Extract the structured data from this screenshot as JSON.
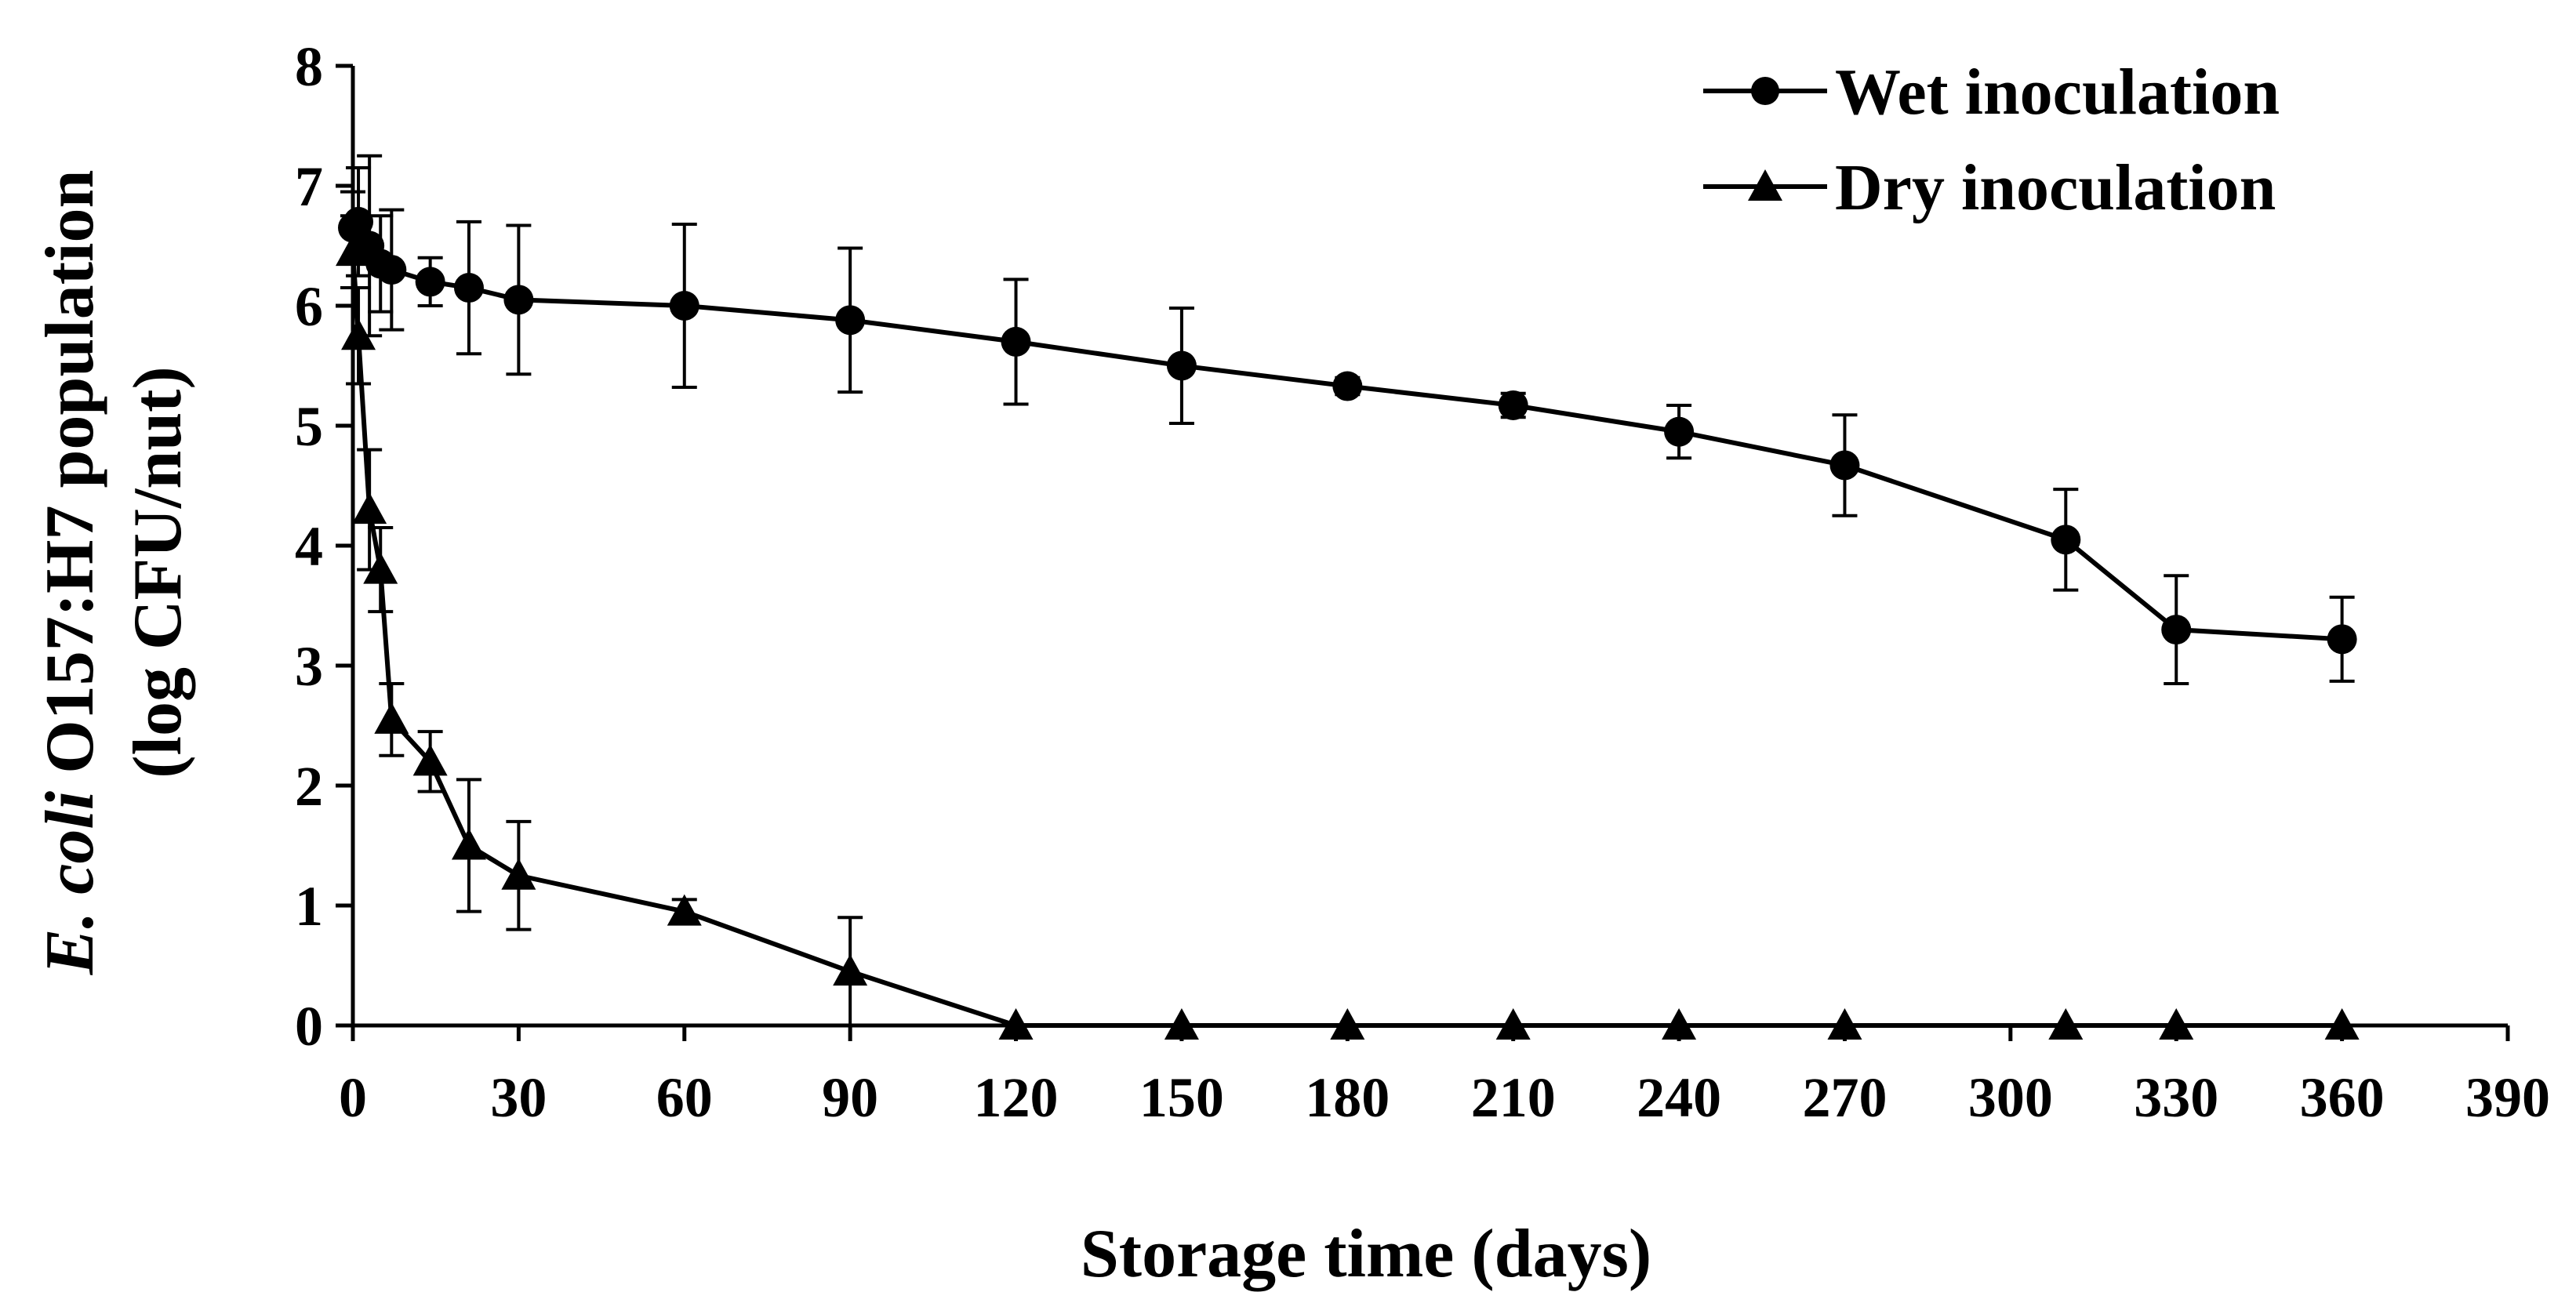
{
  "chart_data": {
    "type": "line",
    "title": "",
    "xlabel": "Storage time (days)",
    "ylabel_line1_italic": "E. coli",
    "ylabel_line1_rest": " O157:H7  population",
    "ylabel_line2": "(log CFU/nut)",
    "xlim": [
      0,
      390
    ],
    "ylim": [
      0,
      8
    ],
    "xticks": [
      0,
      30,
      60,
      90,
      120,
      150,
      180,
      210,
      240,
      270,
      300,
      330,
      360,
      390
    ],
    "yticks": [
      0,
      1,
      2,
      3,
      4,
      5,
      6,
      7,
      8
    ],
    "legend_position": "top-right",
    "grid": false,
    "series": [
      {
        "name": "Wet inoculation",
        "marker": "circle",
        "x": [
          0,
          1,
          3,
          5,
          7,
          14,
          21,
          30,
          60,
          90,
          120,
          150,
          180,
          210,
          240,
          270,
          310,
          330,
          360
        ],
        "y": [
          6.65,
          6.7,
          6.5,
          6.35,
          6.3,
          6.2,
          6.15,
          6.05,
          6.0,
          5.88,
          5.7,
          5.5,
          5.33,
          5.17,
          4.95,
          4.67,
          4.05,
          3.3,
          3.22
        ],
        "err": [
          0.3,
          0.45,
          0.75,
          0.4,
          0.5,
          0.2,
          0.55,
          0.62,
          0.68,
          0.6,
          0.52,
          0.48,
          0.07,
          0.1,
          0.22,
          0.42,
          0.42,
          0.45,
          0.35
        ]
      },
      {
        "name": "Dry inoculation",
        "marker": "triangle",
        "x": [
          0,
          1,
          3,
          5,
          7,
          14,
          21,
          30,
          60,
          90,
          120,
          150,
          180,
          210,
          240,
          270,
          310,
          330,
          360
        ],
        "y": [
          6.45,
          5.75,
          4.3,
          3.8,
          2.55,
          2.2,
          1.5,
          1.25,
          0.95,
          0.45,
          0,
          0,
          0,
          0,
          0,
          0,
          0,
          0,
          0
        ],
        "err": [
          0.3,
          0.4,
          0.5,
          0.35,
          0.3,
          0.25,
          0.55,
          0.45,
          0.1,
          0.45,
          0,
          0,
          0,
          0,
          0,
          0,
          0,
          0,
          0
        ]
      }
    ]
  }
}
